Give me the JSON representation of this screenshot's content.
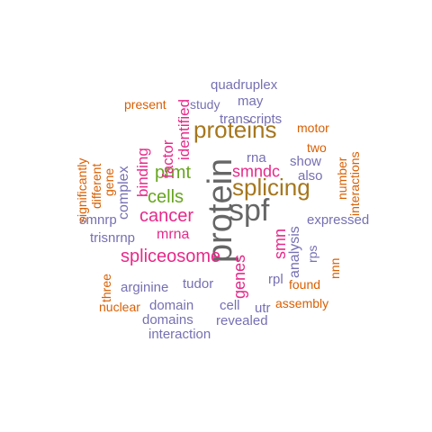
{
  "cloud": {
    "colors": {
      "orange": "#d95f02",
      "purple": "#7570b3",
      "magenta": "#e7298a",
      "green": "#66a61e",
      "brown": "#a6761d",
      "gray": "#666666"
    },
    "words": [
      {
        "text": "spf",
        "color": "#666666",
        "vertical": false
      },
      {
        "text": "protein",
        "color": "#666666",
        "vertical": true
      },
      {
        "text": "splicing",
        "color": "#a6761d",
        "vertical": false
      },
      {
        "text": "proteins",
        "color": "#a6761d",
        "vertical": false
      },
      {
        "text": "cells",
        "color": "#66a61e",
        "vertical": false
      },
      {
        "text": "prmt",
        "color": "#66a61e",
        "vertical": false
      },
      {
        "text": "spliceosome",
        "color": "#e7298a",
        "vertical": false
      },
      {
        "text": "cancer",
        "color": "#e7298a",
        "vertical": false
      },
      {
        "text": "smndc",
        "color": "#e7298a",
        "vertical": false
      },
      {
        "text": "mrna",
        "color": "#e7298a",
        "vertical": false
      },
      {
        "text": "smn",
        "color": "#e7298a",
        "vertical": true
      },
      {
        "text": "genes",
        "color": "#e7298a",
        "vertical": true
      },
      {
        "text": "factor",
        "color": "#e7298a",
        "vertical": true
      },
      {
        "text": "identified",
        "color": "#e7298a",
        "vertical": true
      },
      {
        "text": "binding",
        "color": "#e7298a",
        "vertical": true
      },
      {
        "text": "rna",
        "color": "#7570b3",
        "vertical": false
      },
      {
        "text": "transcripts",
        "color": "#7570b3",
        "vertical": false
      },
      {
        "text": "quadruplex",
        "color": "#7570b3",
        "vertical": false
      },
      {
        "text": "may",
        "color": "#7570b3",
        "vertical": false
      },
      {
        "text": "study",
        "color": "#7570b3",
        "vertical": false
      },
      {
        "text": "show",
        "color": "#7570b3",
        "vertical": false
      },
      {
        "text": "also",
        "color": "#7570b3",
        "vertical": false
      },
      {
        "text": "expressed",
        "color": "#7570b3",
        "vertical": false
      },
      {
        "text": "smnrp",
        "color": "#7570b3",
        "vertical": false
      },
      {
        "text": "trisnrnp",
        "color": "#7570b3",
        "vertical": false
      },
      {
        "text": "arginine",
        "color": "#7570b3",
        "vertical": false
      },
      {
        "text": "tudor",
        "color": "#7570b3",
        "vertical": false
      },
      {
        "text": "domain",
        "color": "#7570b3",
        "vertical": false
      },
      {
        "text": "cell",
        "color": "#7570b3",
        "vertical": false
      },
      {
        "text": "utr",
        "color": "#7570b3",
        "vertical": false
      },
      {
        "text": "rpl",
        "color": "#7570b3",
        "vertical": false
      },
      {
        "text": "domains",
        "color": "#7570b3",
        "vertical": false
      },
      {
        "text": "revealed",
        "color": "#7570b3",
        "vertical": false
      },
      {
        "text": "interaction",
        "color": "#7570b3",
        "vertical": false
      },
      {
        "text": "complex",
        "color": "#7570b3",
        "vertical": true
      },
      {
        "text": "analysis",
        "color": "#7570b3",
        "vertical": true
      },
      {
        "text": "rps",
        "color": "#7570b3",
        "vertical": true
      },
      {
        "text": "present",
        "color": "#d95f02",
        "vertical": false
      },
      {
        "text": "motor",
        "color": "#d95f02",
        "vertical": false
      },
      {
        "text": "two",
        "color": "#d95f02",
        "vertical": false
      },
      {
        "text": "found",
        "color": "#d95f02",
        "vertical": false
      },
      {
        "text": "assembly",
        "color": "#d95f02",
        "vertical": false
      },
      {
        "text": "nuclear",
        "color": "#d95f02",
        "vertical": false
      },
      {
        "text": "number",
        "color": "#d95f02",
        "vertical": true
      },
      {
        "text": "interactions",
        "color": "#d95f02",
        "vertical": true
      },
      {
        "text": "significantly",
        "color": "#d95f02",
        "vertical": true
      },
      {
        "text": "different",
        "color": "#d95f02",
        "vertical": true
      },
      {
        "text": "gene",
        "color": "#d95f02",
        "vertical": true
      },
      {
        "text": "three",
        "color": "#d95f02",
        "vertical": true
      },
      {
        "text": "nnn",
        "color": "#d95f02",
        "vertical": true
      }
    ]
  }
}
